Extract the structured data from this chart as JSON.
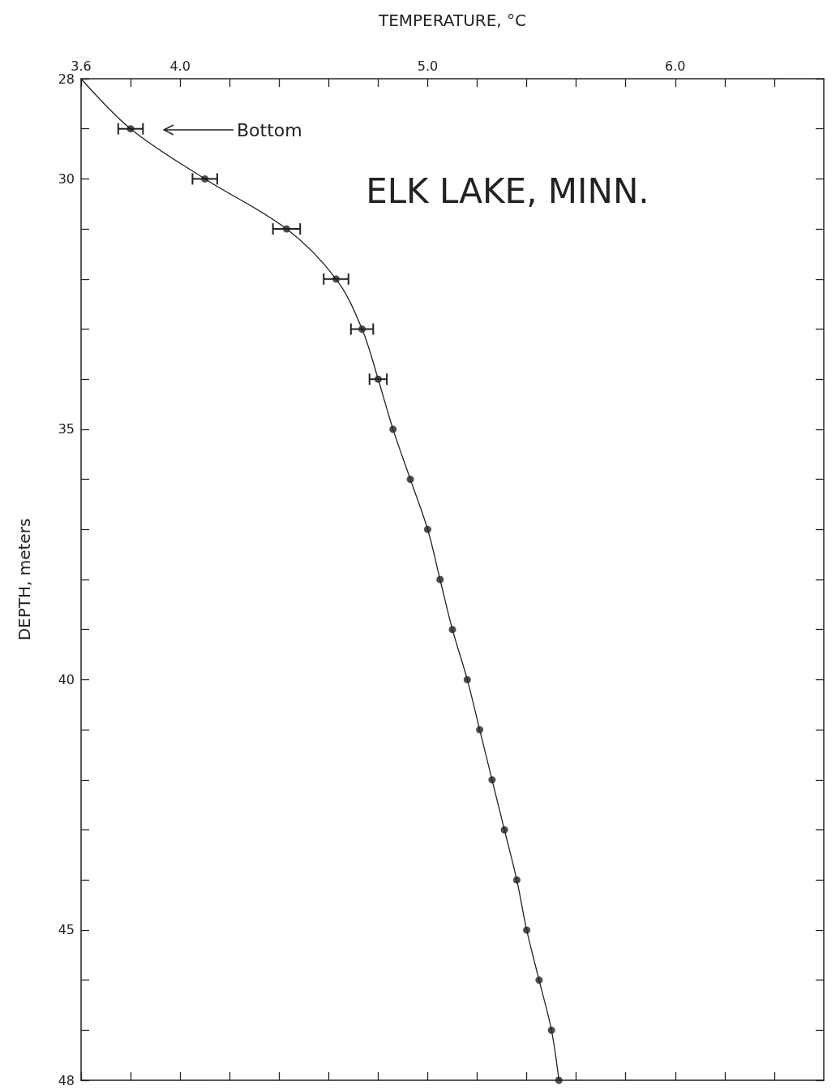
{
  "chart_data": {
    "type": "scatter",
    "title": "ELK LAKE, MINN.",
    "xlabel": "TEMPERATURE, °C",
    "ylabel": "DEPTH, meters",
    "annotations": [
      "Bottom"
    ],
    "xlim": [
      3.6,
      6.6
    ],
    "ylim": [
      48,
      28
    ],
    "xticks": [
      3.6,
      {
        "value": 3.8,
        "label": null
      },
      {
        "value": 4,
        "label": "4.0"
      },
      {
        "value": 4.2,
        "label": null
      },
      {
        "value": 4.4,
        "label": null
      },
      {
        "value": 4.6,
        "label": null
      },
      {
        "value": 4.8,
        "label": null
      },
      {
        "value": 5,
        "label": "5.0"
      },
      {
        "value": 5.2,
        "label": null
      },
      {
        "value": 5.4,
        "label": null
      },
      {
        "value": 5.6,
        "label": null
      },
      {
        "value": 5.8,
        "label": null
      },
      {
        "value": 6,
        "label": "6.0"
      },
      {
        "value": 6.2,
        "label": null
      },
      {
        "value": 6.4,
        "label": null
      }
    ],
    "yticks": [
      28,
      {
        "value": 29,
        "label": null
      },
      30,
      {
        "value": 31,
        "label": null
      },
      {
        "value": 32,
        "label": null
      },
      {
        "value": 33,
        "label": null
      },
      {
        "value": 34,
        "label": null
      },
      35,
      {
        "value": 36,
        "label": null
      },
      {
        "value": 37,
        "label": null
      },
      {
        "value": 38,
        "label": null
      },
      {
        "value": 39,
        "label": null
      },
      40,
      {
        "value": 41,
        "label": null
      },
      {
        "value": 42,
        "label": null
      },
      {
        "value": 43,
        "label": null
      },
      {
        "value": 44,
        "label": null
      },
      45,
      {
        "value": 46,
        "label": null
      },
      {
        "value": 47,
        "label": null
      },
      48
    ],
    "series": [
      {
        "type": "line",
        "color": "#222222",
        "marker": "none",
        "x": [
          3.6,
          3.8,
          4.1,
          4.43,
          4.63,
          4.735,
          4.8,
          4.86,
          4.93,
          5.0,
          5.05,
          5.1,
          5.16,
          5.21,
          5.26,
          5.31,
          5.36,
          5.4,
          5.45,
          5.5,
          5.53
        ],
        "values": [
          28,
          29,
          30,
          31,
          32,
          33,
          34,
          35,
          36,
          37,
          38,
          39,
          40,
          41,
          42,
          43,
          44,
          45,
          46,
          47,
          48
        ]
      },
      {
        "type": "scatter",
        "color": "#222222",
        "marker": "circle",
        "x": [
          3.8,
          4.1,
          4.43,
          4.63,
          4.735,
          4.8,
          4.86,
          4.93,
          5.0,
          5.05,
          5.1,
          5.16,
          5.21,
          5.26,
          5.31,
          5.36,
          5.4,
          5.45,
          5.5,
          5.53
        ],
        "values": [
          29,
          30,
          31,
          32,
          33,
          34,
          35,
          36,
          37,
          38,
          39,
          40,
          41,
          42,
          43,
          44,
          45,
          46,
          47,
          48
        ],
        "xerrors": [
          0.05,
          0.05,
          0.055,
          0.05,
          0.045,
          0.035,
          null,
          null,
          null,
          null,
          null,
          null,
          null,
          null,
          null,
          null,
          null,
          null,
          null,
          null
        ]
      }
    ]
  }
}
